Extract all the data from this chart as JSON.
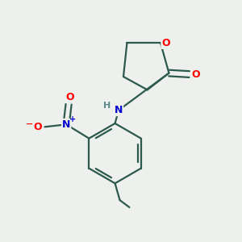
{
  "background_color": "#edf0ec",
  "bond_color": "#2d5a4e",
  "atom_colors": {
    "O": "#ff0000",
    "N_blue": "#0000cc",
    "N_amide": "#2d5a4e",
    "H": "#5a8a8a",
    "C": "#2d5a4e"
  },
  "bond_width": 1.6,
  "figsize": [
    3.0,
    3.0
  ],
  "dpi": 100
}
